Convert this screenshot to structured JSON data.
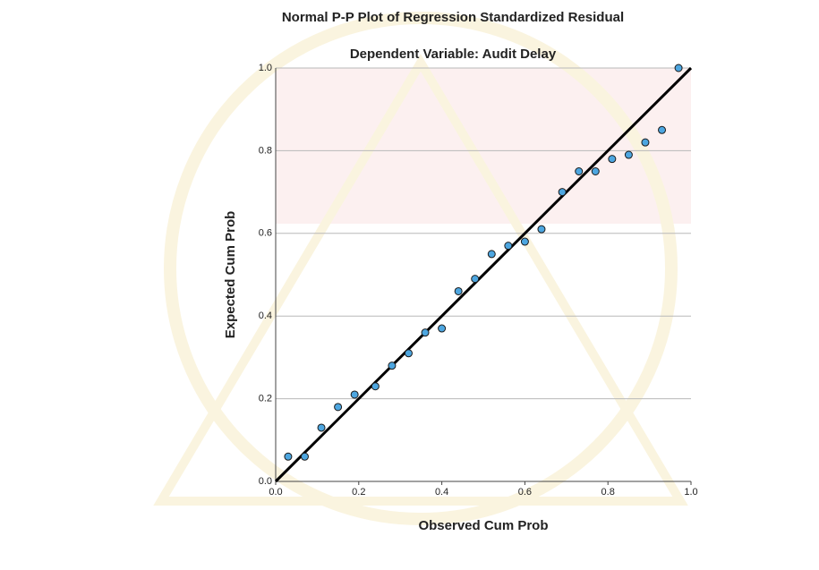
{
  "chart_data": {
    "type": "scatter",
    "title": "Normal P-P Plot of Regression Standardized Residual",
    "subtitle": "Dependent Variable: Audit Delay",
    "x_label": "Observed Cum Prob",
    "y_label": "Expected Cum Prob",
    "x": [
      0.03,
      0.07,
      0.11,
      0.15,
      0.19,
      0.24,
      0.28,
      0.32,
      0.36,
      0.4,
      0.44,
      0.48,
      0.52,
      0.56,
      0.6,
      0.64,
      0.69,
      0.73,
      0.77,
      0.81,
      0.85,
      0.89,
      0.93,
      0.97
    ],
    "values": [
      0.06,
      0.06,
      0.13,
      0.18,
      0.21,
      0.23,
      0.28,
      0.31,
      0.36,
      0.37,
      0.46,
      0.49,
      0.55,
      0.57,
      0.58,
      0.61,
      0.7,
      0.75,
      0.75,
      0.78,
      0.79,
      0.82,
      0.85,
      1.0
    ],
    "color": "#4da6e0",
    "xlim": [
      0,
      1
    ],
    "ylim": [
      0,
      1
    ],
    "xticks": [
      {
        "value": 0,
        "label": "0.0"
      },
      0.2,
      0.4,
      0.6,
      0.8,
      {
        "value": 1,
        "label": "1.0"
      }
    ],
    "yticks": [
      {
        "value": 0,
        "label": "0.0"
      },
      0.2,
      0.4,
      0.6,
      0.8,
      {
        "value": 1,
        "label": "1.0"
      }
    ],
    "grid": true,
    "reference_line": true
  }
}
